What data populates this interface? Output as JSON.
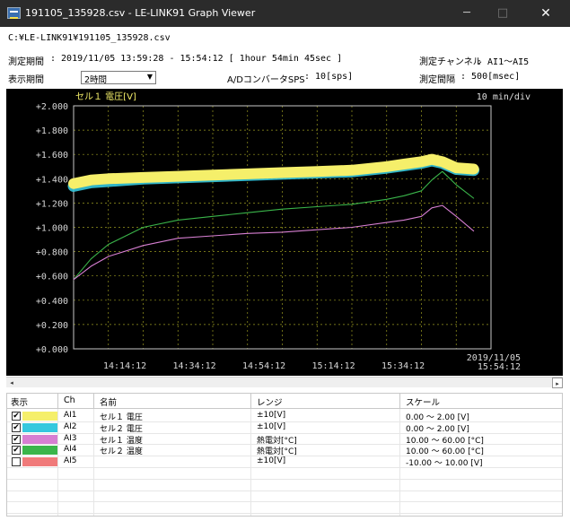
{
  "window": {
    "title": "191105_135928.csv - LE-LINK91 Graph Viewer",
    "minimize_glyph": "─",
    "maximize_glyph": "□",
    "close_glyph": "✕"
  },
  "info": {
    "file_path": "C:¥LE-LINK91¥191105_135928.csv",
    "measure_period_label": "測定期間",
    "measure_period_value": ": 2019/11/05 13:59:28 - 15:54:12 [ 1hour 54min 45sec ]",
    "channel_label": "測定チャンネル",
    "channel_value": ": AI1～AI5",
    "display_period_label": "表示期間",
    "display_period_value": "2時間",
    "sps_label": "A/DコンバータSPS",
    "sps_value": ": 10[sps]",
    "interval_label": "測定間隔",
    "interval_value": ": 500[msec]"
  },
  "chart_data": {
    "type": "line",
    "title": "セル１ 電圧[V]",
    "time_per_div": "10 min/div",
    "ylim": [
      0.0,
      2.0
    ],
    "y_ticks": [
      "+2.000",
      "+1.800",
      "+1.600",
      "+1.400",
      "+1.200",
      "+1.000",
      "+0.800",
      "+0.600",
      "+0.400",
      "+0.200",
      "+0.000"
    ],
    "x_ticks": [
      "14:14:12",
      "14:34:12",
      "14:54:12",
      "15:14:12",
      "15:34:12"
    ],
    "end_date": "2019/11/05",
    "end_time": "15:54:12",
    "grid": true,
    "x_minutes": [
      0,
      5,
      10,
      20,
      30,
      40,
      50,
      60,
      70,
      80,
      90,
      95,
      100,
      103,
      106,
      110,
      115
    ],
    "series": [
      {
        "name": "セル１ 電圧",
        "color": "#f5ef6a",
        "values": [
          1.36,
          1.39,
          1.4,
          1.41,
          1.42,
          1.43,
          1.44,
          1.45,
          1.46,
          1.47,
          1.5,
          1.52,
          1.54,
          1.56,
          1.54,
          1.49,
          1.48
        ]
      },
      {
        "name": "セル２ 電圧",
        "color": "#35c8de",
        "values": [
          1.34,
          1.37,
          1.38,
          1.4,
          1.41,
          1.42,
          1.43,
          1.44,
          1.45,
          1.46,
          1.49,
          1.51,
          1.53,
          1.55,
          1.53,
          1.48,
          1.47
        ]
      },
      {
        "name": "セル１ 温度",
        "color": "#d77fd2",
        "values": [
          0.57,
          0.68,
          0.76,
          0.85,
          0.91,
          0.93,
          0.95,
          0.96,
          0.98,
          1.0,
          1.04,
          1.06,
          1.09,
          1.16,
          1.18,
          1.09,
          0.97
        ]
      },
      {
        "name": "セル２ 温度",
        "color": "#3ab54a",
        "values": [
          0.57,
          0.74,
          0.86,
          1.0,
          1.06,
          1.09,
          1.12,
          1.15,
          1.17,
          1.19,
          1.23,
          1.26,
          1.3,
          1.39,
          1.46,
          1.35,
          1.24
        ]
      }
    ]
  },
  "scrollbar": {
    "left_glyph": "◂",
    "right_glyph": "▸"
  },
  "table": {
    "headers": {
      "display": "表示",
      "ch": "Ch",
      "name": "名前",
      "range": "レンジ",
      "scale": "スケール"
    },
    "rows": [
      {
        "checked": "✔",
        "color": "#f5ef6a",
        "ch": "AI1",
        "name": "セル１ 電圧",
        "range": "±10[V]",
        "scale": "0.00 ～ 2.00 [V]"
      },
      {
        "checked": "✔",
        "color": "#35c8de",
        "ch": "AI2",
        "name": "セル２ 電圧",
        "range": "±10[V]",
        "scale": "0.00 ～ 2.00 [V]"
      },
      {
        "checked": "✔",
        "color": "#d77fd2",
        "ch": "AI3",
        "name": "セル１ 温度",
        "range": "熱電対[°C]",
        "scale": "10.00 ～ 60.00 [°C]"
      },
      {
        "checked": "✔",
        "color": "#3ab54a",
        "ch": "AI4",
        "name": "セル２ 温度",
        "range": "熱電対[°C]",
        "scale": "10.00 ～ 60.00 [°C]"
      },
      {
        "checked": "",
        "color": "#f07a7a",
        "ch": "AI5",
        "name": "",
        "range": "±10[V]",
        "scale": "-10.00 ～ 10.00 [V]"
      }
    ]
  }
}
